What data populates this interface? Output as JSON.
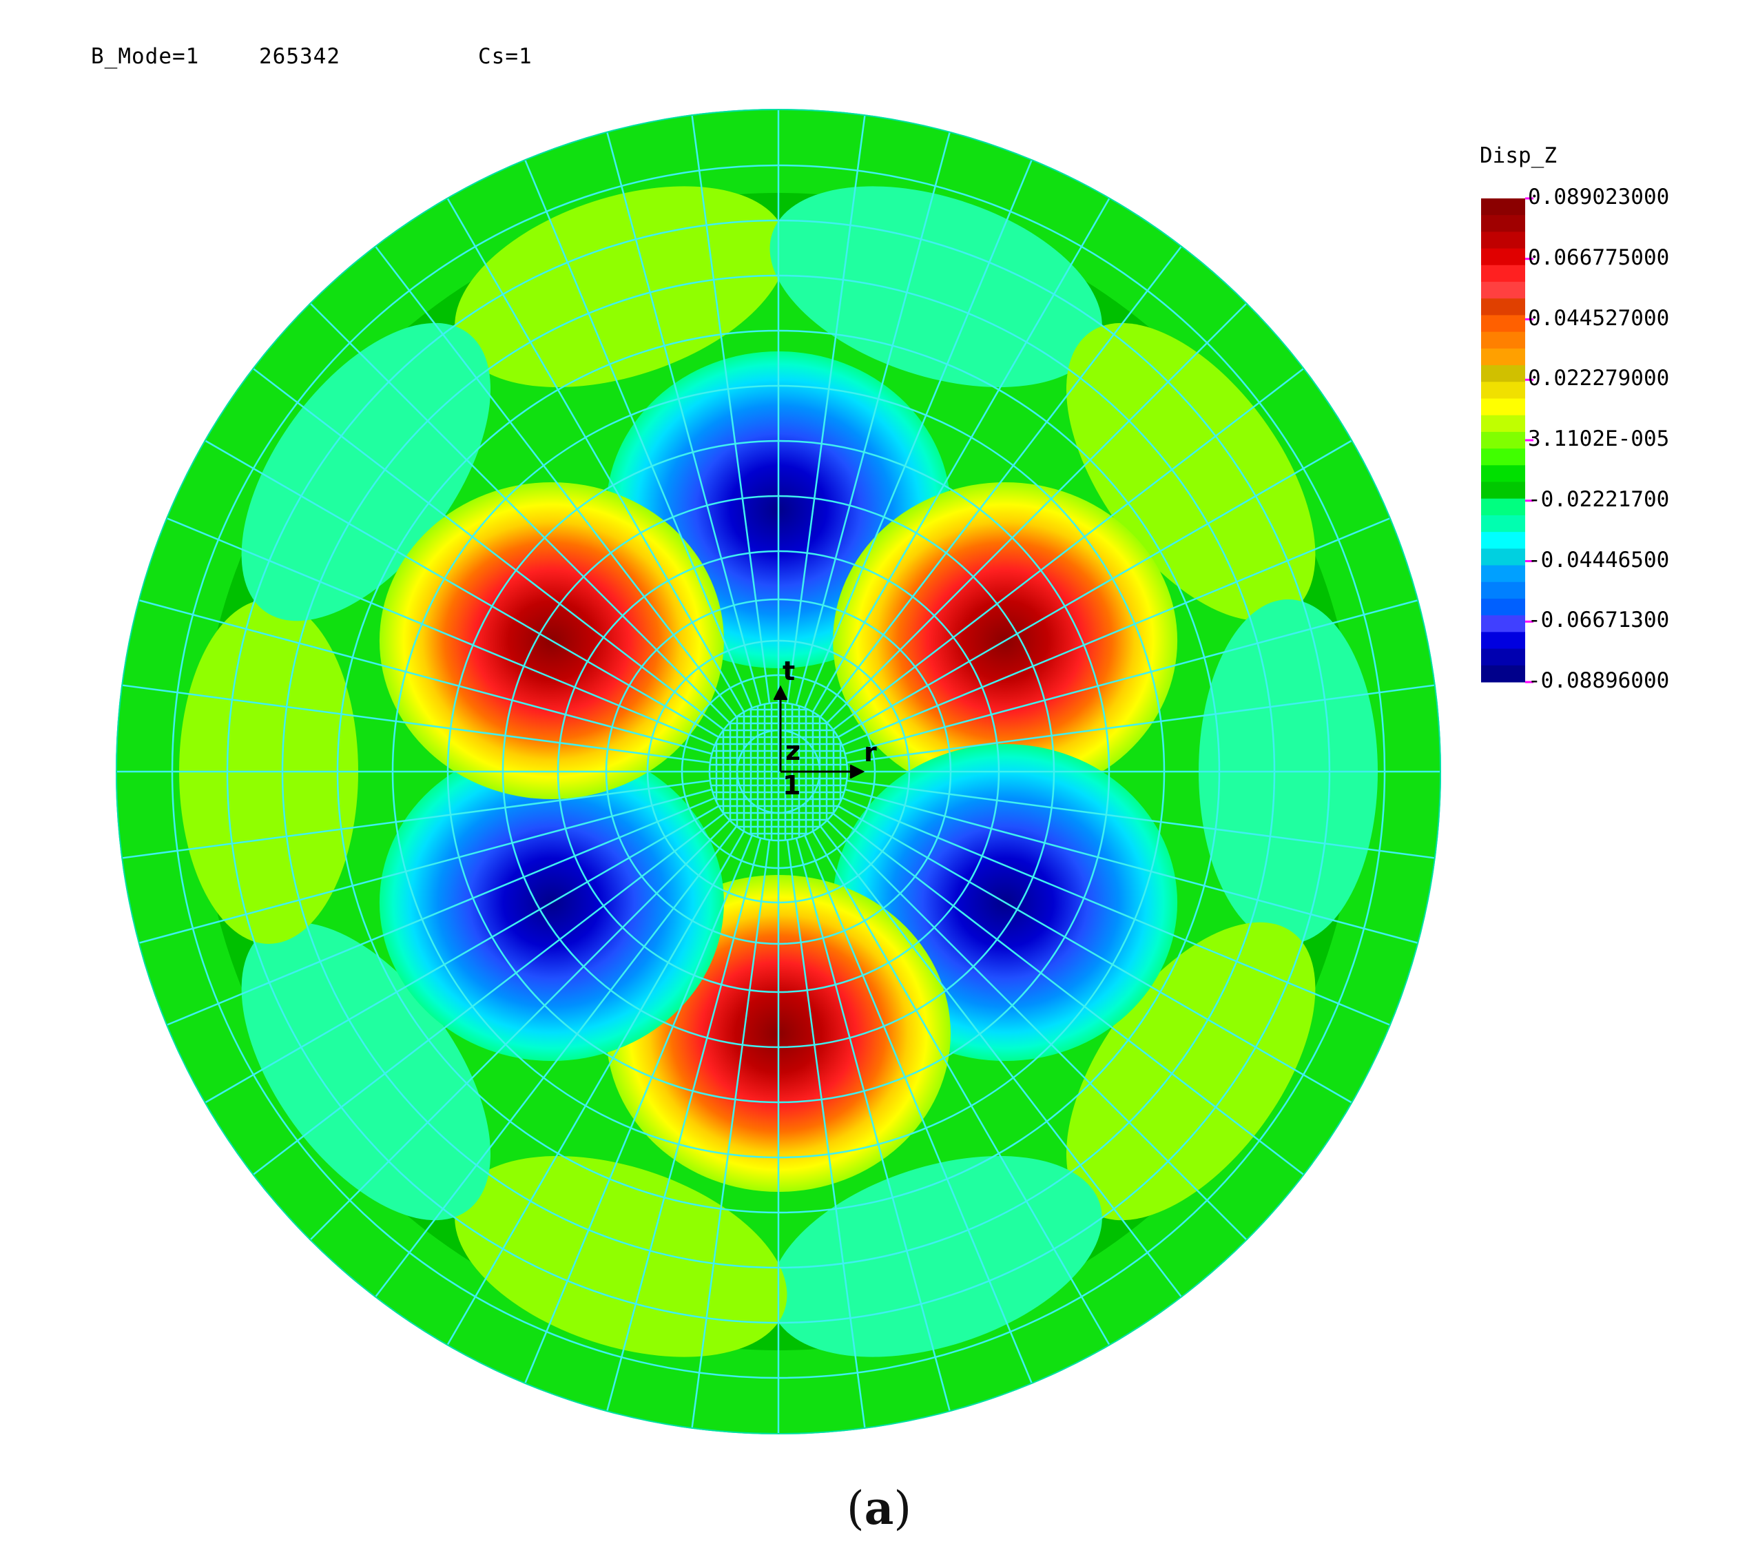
{
  "header": {
    "mode_label": "B_Mode=1",
    "mode_value": "265342",
    "cs_label": "Cs=1"
  },
  "legend": {
    "title": "Disp_Z",
    "values": [
      "0.089023000",
      "0.066775000",
      "0.044527000",
      "0.022279000",
      "3.1102E-005",
      "-0.02221700",
      "-0.04446500",
      "-0.06671300",
      "-0.08896000"
    ],
    "colors": [
      "#8b0000",
      "#a00000",
      "#c00000",
      "#e00000",
      "#ff2020",
      "#ff4040",
      "#e04000",
      "#ff6000",
      "#ff8000",
      "#ffa000",
      "#d0c000",
      "#f0e000",
      "#ffff00",
      "#c0ff00",
      "#80ff00",
      "#40ff00",
      "#00e000",
      "#00c800",
      "#00ff80",
      "#00ffb0",
      "#00ffff",
      "#00d0e0",
      "#00a0ff",
      "#0080ff",
      "#0060ff",
      "#4040ff",
      "#0000e0",
      "#0000b0",
      "#00008b"
    ]
  },
  "axes": {
    "t": "t",
    "r": "r",
    "z": "z",
    "one": "1"
  },
  "caption": {
    "open": "(",
    "letter": "a",
    "close": ")"
  }
}
